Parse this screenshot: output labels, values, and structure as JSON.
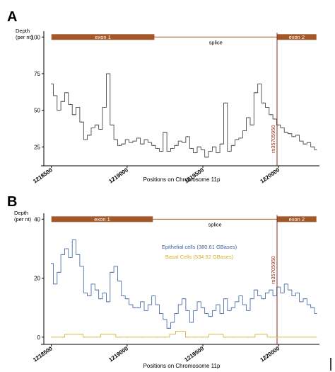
{
  "chart_data": [
    {
      "type": "line",
      "panel_label": "A",
      "ylabel_line1": "Depth",
      "ylabel_line2": "(per nt)",
      "xlabel": "Positions on Chromosome 11p",
      "xlim": [
        1218450,
        1220270
      ],
      "ylim": [
        15,
        104
      ],
      "x_ticks": [
        1218500,
        1219000,
        1219500,
        1220000
      ],
      "y_ticks": [
        25,
        50,
        75,
        100
      ],
      "grid": false,
      "legend": "none",
      "gene_track": {
        "y": 100,
        "exons": [
          {
            "label": "exon 1",
            "start": 1218500,
            "end": 1219180
          },
          {
            "label": "exon 2",
            "start": 1219990,
            "end": 1220250
          }
        ],
        "intron_label": "splice"
      },
      "marker": {
        "label": "rs35705950",
        "x": 1219990,
        "color": "#8b2a1c"
      },
      "series": [
        {
          "color": "#333333",
          "x": [
            1218500,
            1218525,
            1218550,
            1218575,
            1218600,
            1218625,
            1218650,
            1218675,
            1218700,
            1218725,
            1218750,
            1218775,
            1218800,
            1218825,
            1218850,
            1218875,
            1218900,
            1218925,
            1218950,
            1218975,
            1219000,
            1219025,
            1219050,
            1219075,
            1219100,
            1219125,
            1219150,
            1219175,
            1219200,
            1219225,
            1219250,
            1219275,
            1219300,
            1219325,
            1219350,
            1219375,
            1219400,
            1219425,
            1219450,
            1219475,
            1219500,
            1219525,
            1219550,
            1219575,
            1219600,
            1219625,
            1219650,
            1219675,
            1219700,
            1219725,
            1219750,
            1219775,
            1219800,
            1219825,
            1219850,
            1219875,
            1219900,
            1219925,
            1219950,
            1219975,
            1220000,
            1220025,
            1220050,
            1220075,
            1220100,
            1220125,
            1220150,
            1220175,
            1220200,
            1220225,
            1220250
          ],
          "y": [
            68,
            60,
            50,
            56,
            62,
            54,
            47,
            52,
            42,
            30,
            33,
            38,
            40,
            37,
            52,
            75,
            40,
            30,
            26,
            27,
            30,
            28,
            29,
            31,
            27,
            30,
            28,
            26,
            24,
            22,
            35,
            22,
            24,
            26,
            29,
            28,
            32,
            24,
            21,
            25,
            23,
            18,
            22,
            25,
            21,
            27,
            55,
            22,
            26,
            30,
            31,
            36,
            45,
            40,
            62,
            68,
            55,
            52,
            47,
            44,
            40,
            38,
            35,
            34,
            32,
            33,
            29,
            27,
            28,
            25,
            23
          ]
        }
      ]
    },
    {
      "type": "line",
      "panel_label": "B",
      "ylabel_line1": "Depth",
      "ylabel_line2": "(per nt)",
      "xlabel": "Positions on Chromosome 11p",
      "xlim": [
        1218450,
        1220270
      ],
      "ylim": [
        -1,
        42
      ],
      "x_ticks": [
        1218500,
        1219000,
        1219500,
        1220000
      ],
      "y_ticks": [
        0,
        20,
        40
      ],
      "grid": false,
      "legend": "center",
      "gene_track": {
        "y": 40,
        "exons": [
          {
            "label": "exon 1",
            "start": 1218500,
            "end": 1219170
          },
          {
            "label": "exon 2",
            "start": 1219990,
            "end": 1220250
          }
        ],
        "intron_label": "splice"
      },
      "marker": {
        "label": "rs35705950",
        "x": 1219990,
        "color": "#8b2a1c"
      },
      "series": [
        {
          "name": "Epithelial cells (380.61 GBases)",
          "color": "#3a5fa0",
          "x": [
            1218500,
            1218525,
            1218550,
            1218575,
            1218600,
            1218625,
            1218650,
            1218675,
            1218700,
            1218725,
            1218750,
            1218775,
            1218800,
            1218825,
            1218850,
            1218875,
            1218900,
            1218925,
            1218950,
            1218975,
            1219000,
            1219025,
            1219050,
            1219075,
            1219100,
            1219125,
            1219150,
            1219175,
            1219200,
            1219225,
            1219250,
            1219275,
            1219300,
            1219325,
            1219350,
            1219375,
            1219400,
            1219425,
            1219450,
            1219475,
            1219500,
            1219525,
            1219550,
            1219575,
            1219600,
            1219625,
            1219650,
            1219675,
            1219700,
            1219725,
            1219750,
            1219775,
            1219800,
            1219825,
            1219850,
            1219875,
            1219900,
            1219925,
            1219950,
            1219975,
            1220000,
            1220025,
            1220050,
            1220075,
            1220100,
            1220125,
            1220150,
            1220175,
            1220200,
            1220225,
            1220250
          ],
          "y": [
            25,
            18,
            22,
            28,
            30,
            27,
            33,
            28,
            24,
            15,
            14,
            18,
            16,
            13,
            15,
            12,
            22,
            24,
            19,
            14,
            13,
            11,
            10,
            10,
            12,
            9,
            11,
            14,
            11,
            8,
            6,
            3,
            5,
            8,
            11,
            13,
            9,
            5,
            9,
            12,
            10,
            8,
            7,
            9,
            11,
            8,
            13,
            9,
            10,
            12,
            14,
            11,
            9,
            13,
            16,
            14,
            13,
            15,
            16,
            14,
            17,
            15,
            18,
            16,
            14,
            15,
            12,
            13,
            11,
            10,
            8
          ]
        },
        {
          "name": "Basal Cells (534.92 GBases)",
          "color": "#d4b02a",
          "x": [
            1218500,
            1218575,
            1218600,
            1218700,
            1218720,
            1218800,
            1218850,
            1218900,
            1218950,
            1219000,
            1219100,
            1219200,
            1219250,
            1219310,
            1219330,
            1219370,
            1219400,
            1219450,
            1219500,
            1219530,
            1219550,
            1219620,
            1219650,
            1219700,
            1219800,
            1219830,
            1219860,
            1219900,
            1219950,
            1219990,
            1220250
          ],
          "y": [
            0,
            0,
            1,
            1,
            0,
            0,
            1,
            1,
            0,
            0,
            0,
            0,
            0,
            1,
            2,
            2,
            0,
            0,
            0,
            0,
            1,
            1,
            0,
            0,
            0,
            0,
            1,
            1,
            0,
            0,
            0
          ]
        }
      ]
    }
  ]
}
